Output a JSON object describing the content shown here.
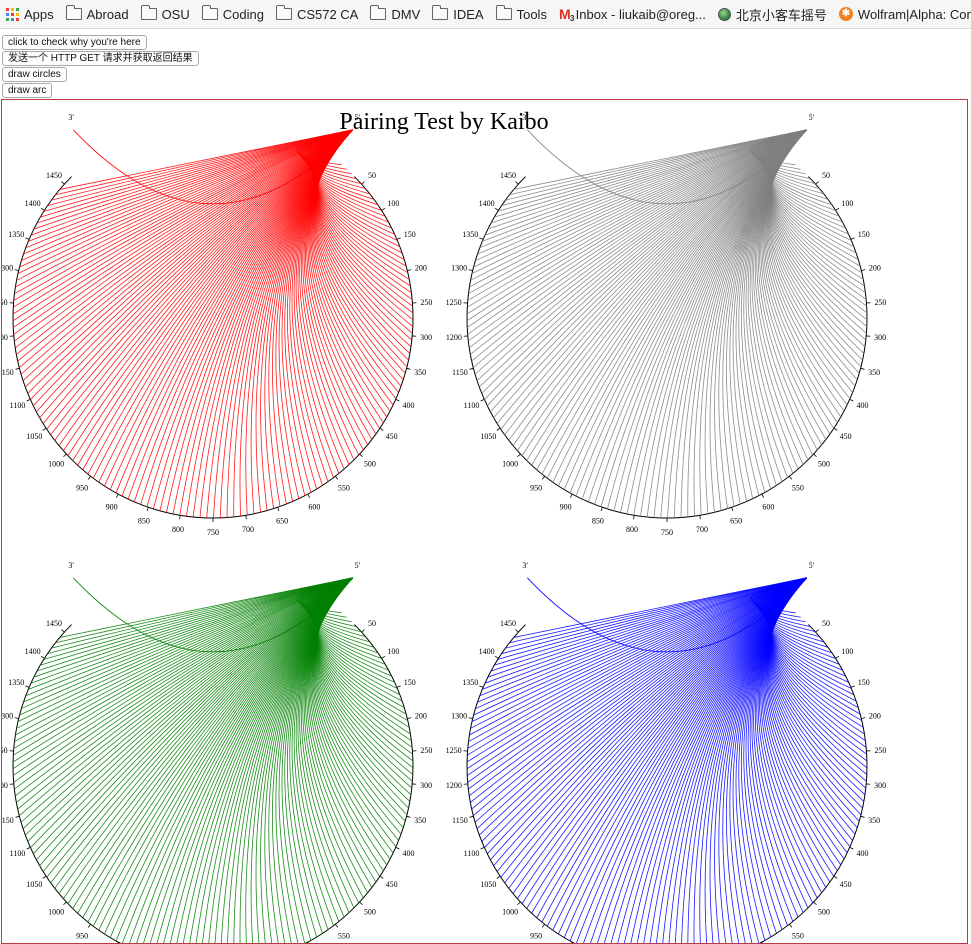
{
  "bookmarks": [
    {
      "label": "Apps",
      "icon": "apps-grid-icon"
    },
    {
      "label": "Abroad",
      "icon": "folder-icon"
    },
    {
      "label": "OSU",
      "icon": "folder-icon"
    },
    {
      "label": "Coding",
      "icon": "folder-icon"
    },
    {
      "label": "CS572 CA",
      "icon": "folder-icon"
    },
    {
      "label": "DMV",
      "icon": "folder-icon"
    },
    {
      "label": "IDEA",
      "icon": "folder-icon"
    },
    {
      "label": "Tools",
      "icon": "folder-icon"
    },
    {
      "label": "Inbox - liukaib@oreg...",
      "icon": "gmail-icon",
      "badge": "3"
    },
    {
      "label": "北京小客车摇号",
      "icon": "globe-icon"
    },
    {
      "label": "Wolfram|Alpha: Com...",
      "icon": "wolfram-icon"
    }
  ],
  "buttons": {
    "check_why": "click to check why you're here",
    "http_get": "发送一个 HTTP GET 请求并获取返回结果",
    "draw_circles": "draw circles",
    "draw_arc": "draw arc"
  },
  "canvas": {
    "title": "Pairing Test by Kaibo",
    "marker_left": "3'",
    "marker_right": "5'",
    "tick_labels": [
      "50",
      "100",
      "150",
      "200",
      "250",
      "300",
      "350",
      "400",
      "450",
      "500",
      "550",
      "600",
      "650",
      "700",
      "750",
      "800",
      "850",
      "900",
      "950",
      "1000",
      "1050",
      "1100",
      "1150",
      "1200",
      "1250",
      "1300",
      "1350",
      "1400",
      "1450"
    ],
    "diagram_colors": [
      "#ff0000",
      "#808080",
      "#008000",
      "#0000ff"
    ]
  }
}
